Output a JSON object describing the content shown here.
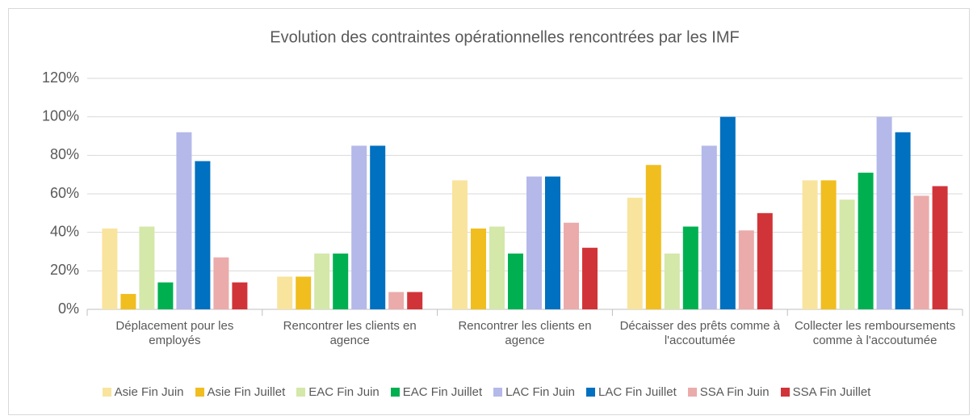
{
  "chart_data": {
    "type": "bar",
    "title": "Evolution des contraintes opérationnelles rencontrées par les IMF",
    "categories": [
      "Déplacement pour les employés",
      "Rencontrer les clients en agence",
      "Rencontrer les clients en agence",
      "Décaisser des prêts comme à l'accoutumée",
      "Collecter les remboursements comme à l'accoutumée"
    ],
    "series": [
      {
        "name": "Asie Fin Juin",
        "color": "#f9e49e",
        "values": [
          42,
          17,
          67,
          58,
          67
        ]
      },
      {
        "name": "Asie Fin Juillet",
        "color": "#f0be1f",
        "values": [
          8,
          17,
          42,
          75,
          67
        ]
      },
      {
        "name": "EAC Fin Juin",
        "color": "#d4e8a9",
        "values": [
          43,
          29,
          43,
          29,
          57
        ]
      },
      {
        "name": "EAC Fin Juillet",
        "color": "#00b050",
        "values": [
          14,
          29,
          29,
          43,
          71
        ]
      },
      {
        "name": "LAC Fin Juin",
        "color": "#b4b9e9",
        "values": [
          92,
          85,
          69,
          85,
          100
        ]
      },
      {
        "name": "LAC Fin Juillet",
        "color": "#0070c0",
        "values": [
          77,
          85,
          69,
          100,
          92
        ]
      },
      {
        "name": "SSA Fin Juin",
        "color": "#ebabab",
        "values": [
          27,
          9,
          45,
          41,
          59
        ]
      },
      {
        "name": "SSA Fin Juillet",
        "color": "#d13438",
        "values": [
          14,
          9,
          32,
          50,
          64
        ]
      }
    ],
    "ylim": [
      0,
      120
    ],
    "yticks": [
      {
        "value": 0,
        "label": "0%"
      },
      {
        "value": 20,
        "label": "20%"
      },
      {
        "value": 40,
        "label": "40%"
      },
      {
        "value": 60,
        "label": "60%"
      },
      {
        "value": 80,
        "label": "80%"
      },
      {
        "value": 100,
        "label": "100%"
      },
      {
        "value": 120,
        "label": "120%"
      }
    ],
    "grid": true,
    "legend": "bottom"
  }
}
